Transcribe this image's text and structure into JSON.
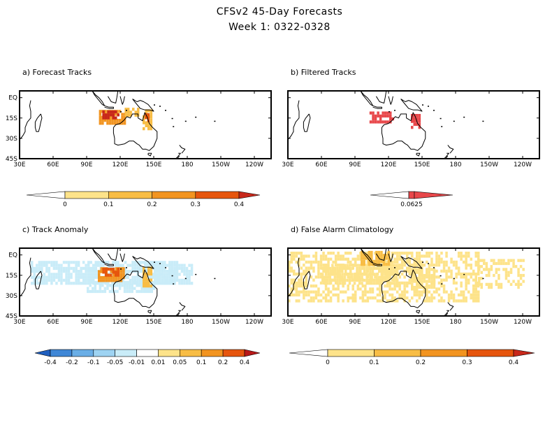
{
  "page": {
    "title_line1": "CFSv2 45-Day Forecasts",
    "title_line2": "Week 1: 0322-0328"
  },
  "chart_data": [
    {
      "type": "heatmap",
      "id": "a",
      "title": "a) Forecast Tracks",
      "x_ticks": [
        "30E",
        "60E",
        "90E",
        "120E",
        "150E",
        "180",
        "150W",
        "120W"
      ],
      "y_ticks": [
        "EQ",
        "15S",
        "30S",
        "45S"
      ],
      "xlim": [
        30,
        255
      ],
      "ylim": [
        -45,
        5
      ],
      "colorbar": {
        "labels": [
          "0",
          "0.1",
          "0.2",
          "0.3",
          "0.4"
        ],
        "colors": [
          "#ffffff",
          "#fde38a",
          "#f8bd45",
          "#f29420",
          "#e6550d",
          "#c8281b"
        ]
      },
      "regions": [
        {
          "lon": [
            101,
            124
          ],
          "lat": [
            -20,
            -10
          ],
          "value": 0.3
        },
        {
          "lon": [
            104,
            118
          ],
          "lat": [
            -16,
            -11
          ],
          "value": 0.45
        },
        {
          "lon": [
            124,
            136
          ],
          "lat": [
            -14,
            -9
          ],
          "value": 0.15
        },
        {
          "lon": [
            140,
            148
          ],
          "lat": [
            -24,
            -10
          ],
          "value": 0.2
        },
        {
          "lon": [
            142,
            146
          ],
          "lat": [
            -18,
            -13
          ],
          "value": 0.35
        }
      ]
    },
    {
      "type": "heatmap",
      "id": "b",
      "title": "b) Filtered Tracks",
      "x_ticks": [
        "30E",
        "60E",
        "90E",
        "120E",
        "150E",
        "180",
        "150W",
        "120W"
      ],
      "y_ticks": [],
      "xlim": [
        30,
        255
      ],
      "ylim": [
        -45,
        5
      ],
      "colorbar": {
        "labels": [
          "0.0625"
        ],
        "colors": [
          "#ffffff",
          "#e8474a"
        ]
      },
      "regions": [
        {
          "lon": [
            103,
            123
          ],
          "lat": [
            -19,
            -11
          ],
          "value": 0.0625
        },
        {
          "lon": [
            140,
            147
          ],
          "lat": [
            -23,
            -13
          ],
          "value": 0.0625
        }
      ]
    },
    {
      "type": "heatmap",
      "id": "c",
      "title": "c) Track Anomaly",
      "x_ticks": [
        "30E",
        "60E",
        "90E",
        "120E",
        "150E",
        "180",
        "150W",
        "120W"
      ],
      "y_ticks": [
        "EQ",
        "15S",
        "30S",
        "45S"
      ],
      "xlim": [
        30,
        255
      ],
      "ylim": [
        -45,
        5
      ],
      "colorbar": {
        "labels": [
          "-0.4",
          "-0.2",
          "-0.1",
          "-0.05",
          "-0.01",
          "0.01",
          "0.05",
          "0.1",
          "0.2",
          "0.4"
        ],
        "colors": [
          "#1f5fbf",
          "#3f87d6",
          "#6aaee6",
          "#9ed3f2",
          "#c9ecf8",
          "#ffffff",
          "#fde38a",
          "#f8bd45",
          "#f29420",
          "#e6550d",
          "#b81818"
        ]
      },
      "regions": [
        {
          "lon": [
            40,
            170
          ],
          "lat": [
            -22,
            -5
          ],
          "value": -0.01
        },
        {
          "lon": [
            90,
            150
          ],
          "lat": [
            -28,
            -20
          ],
          "value": -0.01
        },
        {
          "lon": [
            150,
            185
          ],
          "lat": [
            -22,
            -8
          ],
          "value": -0.01
        },
        {
          "lon": [
            100,
            124
          ],
          "lat": [
            -20,
            -10
          ],
          "value": 0.2
        },
        {
          "lon": [
            104,
            118
          ],
          "lat": [
            -16,
            -11
          ],
          "value": 0.4
        },
        {
          "lon": [
            140,
            148
          ],
          "lat": [
            -24,
            -10
          ],
          "value": 0.1
        }
      ]
    },
    {
      "type": "heatmap",
      "id": "d",
      "title": "d) False Alarm Climatology",
      "x_ticks": [
        "30E",
        "60E",
        "90E",
        "120E",
        "150E",
        "180",
        "150W",
        "120W"
      ],
      "y_ticks": [],
      "xlim": [
        30,
        255
      ],
      "ylim": [
        -45,
        5
      ],
      "colorbar": {
        "labels": [
          "0",
          "0.1",
          "0.2",
          "0.3",
          "0.4"
        ],
        "colors": [
          "#ffffff",
          "#fde38a",
          "#f8bd45",
          "#f29420",
          "#e6550d",
          "#c8281b"
        ]
      },
      "regions": [
        {
          "lon": [
            30,
            200
          ],
          "lat": [
            -35,
            2
          ],
          "value": 0.05
        },
        {
          "lon": [
            200,
            240
          ],
          "lat": [
            -25,
            -5
          ],
          "value": 0.05
        },
        {
          "lon": [
            60,
            130
          ],
          "lat": [
            -22,
            -8
          ],
          "value": 0.1
        },
        {
          "lon": [
            95,
            120
          ],
          "lat": [
            -8,
            2
          ],
          "value": 0.15
        },
        {
          "lon": [
            140,
            160
          ],
          "lat": [
            -25,
            -10
          ],
          "value": 0.1
        }
      ]
    }
  ]
}
